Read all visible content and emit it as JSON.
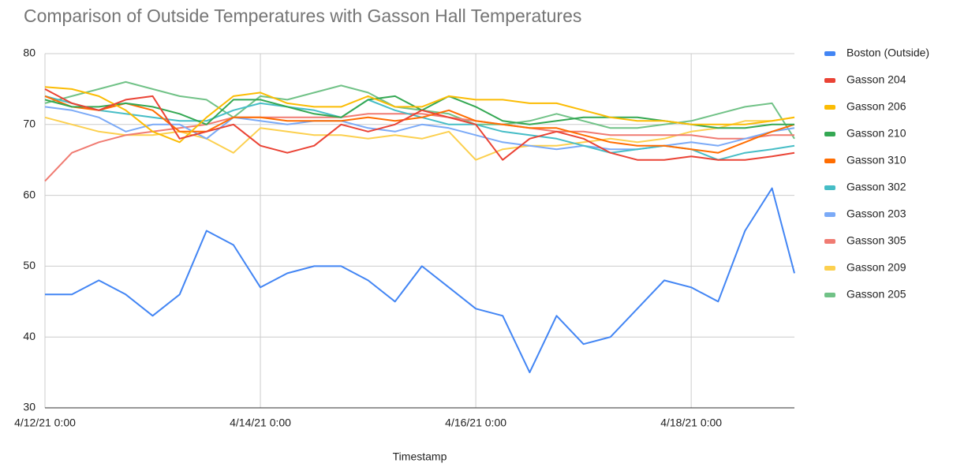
{
  "chart_data": {
    "type": "line",
    "title": "Comparison of Outside Temperatures with Gasson Hall Temperatures",
    "x_label": "Timestamp",
    "x": [
      "4/12/21 0:00",
      "4/12/21 6:00",
      "4/12/21 12:00",
      "4/12/21 18:00",
      "4/13/21 0:00",
      "4/13/21 6:00",
      "4/13/21 12:00",
      "4/13/21 18:00",
      "4/14/21 0:00",
      "4/14/21 6:00",
      "4/14/21 12:00",
      "4/14/21 18:00",
      "4/15/21 0:00",
      "4/15/21 6:00",
      "4/15/21 12:00",
      "4/15/21 18:00",
      "4/16/21 0:00",
      "4/16/21 6:00",
      "4/16/21 12:00",
      "4/16/21 18:00",
      "4/17/21 0:00",
      "4/17/21 6:00",
      "4/17/21 12:00",
      "4/17/21 18:00",
      "4/18/21 0:00",
      "4/18/21 6:00",
      "4/18/21 12:00",
      "4/18/21 18:00",
      "4/18/21 23:00"
    ],
    "xlim": [
      "4/12/21 0:00",
      "4/18/21 23:00"
    ],
    "xticks": [
      "4/12/21 0:00",
      "4/14/21 0:00",
      "4/16/21 0:00",
      "4/18/21 0:00"
    ],
    "ylim": [
      30,
      80
    ],
    "yticks": [
      30,
      40,
      50,
      60,
      70,
      80
    ],
    "grid": true,
    "legend": "right",
    "series": [
      {
        "name": "Boston (Outside)",
        "color": "#4285f4",
        "values": [
          46,
          46,
          48,
          46,
          43,
          46,
          55,
          53,
          47,
          49,
          50,
          50,
          48,
          45,
          50,
          47,
          44,
          43,
          35,
          43,
          39,
          40,
          44,
          48,
          47,
          45,
          55,
          61,
          49
        ]
      },
      {
        "name": "Gasson 204",
        "color": "#ea4335",
        "values": [
          75,
          73,
          72,
          73.5,
          74,
          68,
          69,
          70,
          67,
          66,
          67,
          70,
          69,
          70,
          72,
          71,
          70,
          65,
          68,
          69,
          68,
          66,
          65,
          65,
          65.5,
          65,
          65,
          65.5,
          66
        ]
      },
      {
        "name": "Gasson 206",
        "color": "#fbbc04",
        "values": [
          75.3,
          75,
          74,
          72,
          69,
          67.5,
          71,
          74,
          74.5,
          73,
          72.5,
          72.5,
          74,
          72.5,
          72.5,
          74,
          73.5,
          73.5,
          73,
          73,
          72,
          71,
          70.5,
          70.5,
          70,
          70,
          70,
          70.5,
          71
        ]
      },
      {
        "name": "Gasson 210",
        "color": "#34a853",
        "values": [
          73.5,
          72.5,
          72.5,
          73,
          72.5,
          71.5,
          70,
          73.5,
          73.5,
          72.5,
          71.5,
          71,
          73.5,
          74,
          72,
          74,
          72.5,
          70.5,
          70,
          70.5,
          71,
          71,
          71,
          70.5,
          70,
          69.5,
          69.5,
          70,
          70
        ]
      },
      {
        "name": "Gasson 310",
        "color": "#ff6d01",
        "values": [
          74,
          72.5,
          72,
          73,
          72,
          69,
          69,
          71,
          71,
          70.5,
          70.5,
          70.5,
          71,
          70.5,
          71,
          72,
          70.5,
          70,
          69.5,
          69.5,
          68.5,
          67.5,
          67,
          67,
          66.5,
          66,
          67.5,
          69,
          70
        ]
      },
      {
        "name": "Gasson 302",
        "color": "#46bdc6",
        "values": [
          74,
          73,
          72,
          71.5,
          71,
          70.5,
          70.5,
          72,
          73,
          72.5,
          72,
          71,
          73.5,
          72,
          71,
          70,
          70,
          69,
          68.5,
          68,
          67,
          66,
          66.5,
          67,
          66.5,
          65,
          66,
          66.5,
          67
        ]
      },
      {
        "name": "Gasson 203",
        "color": "#7baaf7",
        "values": [
          72.5,
          72,
          71,
          69,
          70,
          70,
          68,
          71,
          70.5,
          70,
          70.5,
          70.5,
          69.5,
          69,
          70,
          69.5,
          68.5,
          67.5,
          67,
          66.5,
          67,
          66.5,
          66.5,
          67,
          67.5,
          67,
          68,
          69,
          69.5
        ]
      },
      {
        "name": "Gasson 305",
        "color": "#f07b72",
        "values": [
          62,
          66,
          67.5,
          68.5,
          69,
          69.5,
          70,
          71,
          71,
          71,
          71,
          71,
          71.5,
          71.5,
          71.5,
          71,
          70.5,
          70,
          69.5,
          69,
          69,
          68.5,
          68.5,
          68.5,
          68.5,
          68,
          68,
          68.5,
          68.5
        ]
      },
      {
        "name": "Gasson 209",
        "color": "#fcd04f",
        "values": [
          71,
          70,
          69,
          68.5,
          68.5,
          69,
          68,
          66,
          69.5,
          69,
          68.5,
          68.5,
          68,
          68.5,
          68,
          69,
          65,
          66.5,
          67,
          67,
          67.5,
          68,
          67.5,
          68,
          69,
          69.5,
          70.5,
          70.5,
          71
        ]
      },
      {
        "name": "Gasson 205",
        "color": "#71c287",
        "values": [
          73,
          74,
          75,
          76,
          75,
          74,
          73.5,
          71,
          74,
          73.5,
          74.5,
          75.5,
          74.5,
          72.5,
          72,
          71.5,
          70,
          70,
          70.5,
          71.5,
          70.5,
          69.5,
          69.5,
          70,
          70.5,
          71.5,
          72.5,
          73,
          68
        ]
      }
    ]
  }
}
